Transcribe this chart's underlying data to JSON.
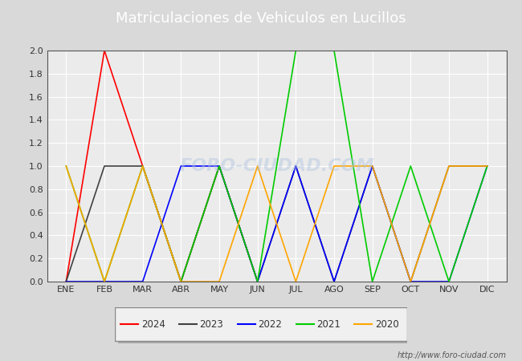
{
  "title": "Matriculaciones de Vehiculos en Lucillos",
  "title_color": "#ffffff",
  "title_bg_color": "#4472c4",
  "months": [
    "ENE",
    "FEB",
    "MAR",
    "ABR",
    "MAY",
    "JUN",
    "JUL",
    "AGO",
    "SEP",
    "OCT",
    "NOV",
    "DIC"
  ],
  "series": {
    "2024": {
      "color": "#ff0000",
      "data": [
        0,
        2,
        1,
        0,
        1,
        0,
        null,
        null,
        null,
        null,
        null,
        null
      ]
    },
    "2023": {
      "color": "#404040",
      "data": [
        0,
        1,
        1,
        0,
        1,
        0,
        1,
        0,
        1,
        0,
        1,
        1
      ]
    },
    "2022": {
      "color": "#0000ff",
      "data": [
        0,
        0,
        0,
        1,
        1,
        0,
        1,
        0,
        1,
        0,
        0,
        1
      ]
    },
    "2021": {
      "color": "#00cc00",
      "data": [
        1,
        0,
        1,
        0,
        1,
        0,
        2,
        2,
        0,
        1,
        0,
        1
      ]
    },
    "2020": {
      "color": "#ffa500",
      "data": [
        1,
        0,
        1,
        0,
        0,
        1,
        0,
        1,
        1,
        0,
        1,
        1
      ]
    }
  },
  "ylim": [
    0,
    2.0
  ],
  "yticks": [
    0.0,
    0.2,
    0.4,
    0.6,
    0.8,
    1.0,
    1.2,
    1.4,
    1.6,
    1.8,
    2.0
  ],
  "bg_color": "#d9d9d9",
  "plot_bg_color": "#ebebeb",
  "grid_color": "#ffffff",
  "watermark": "FORO-CIUDAD.COM",
  "url_text": "http://www.foro-ciudad.com",
  "legend_order": [
    "2024",
    "2023",
    "2022",
    "2021",
    "2020"
  ]
}
